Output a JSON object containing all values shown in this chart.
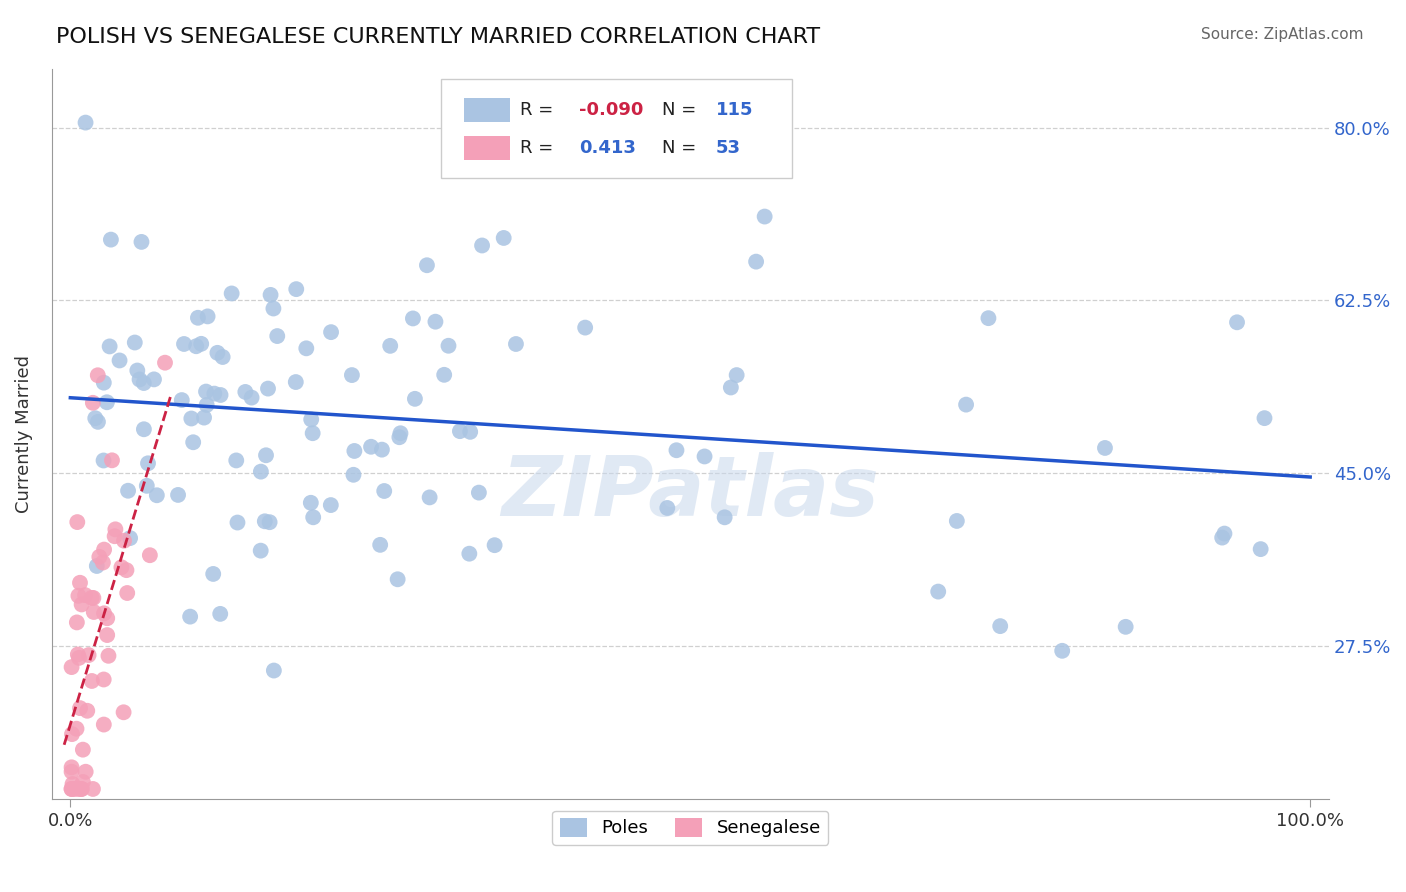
{
  "title": "POLISH VS SENEGALESE CURRENTLY MARRIED CORRELATION CHART",
  "source": "Source: ZipAtlas.com",
  "ylabel": "Currently Married",
  "watermark": "ZIPatlas",
  "blue_R": -0.09,
  "blue_N": 115,
  "pink_R": 0.413,
  "pink_N": 53,
  "blue_color": "#aac4e2",
  "pink_color": "#f4a0b8",
  "blue_line_color": "#2255cc",
  "pink_line_color": "#cc2244",
  "ytick_labels": [
    "27.5%",
    "45.0%",
    "62.5%",
    "80.0%"
  ],
  "ytick_values": [
    0.275,
    0.45,
    0.625,
    0.8
  ],
  "xtick_labels": [
    "0.0%",
    "100.0%"
  ],
  "xlim": [
    -0.015,
    1.015
  ],
  "ylim": [
    0.12,
    0.86
  ],
  "blue_seed": 77,
  "pink_seed": 55
}
